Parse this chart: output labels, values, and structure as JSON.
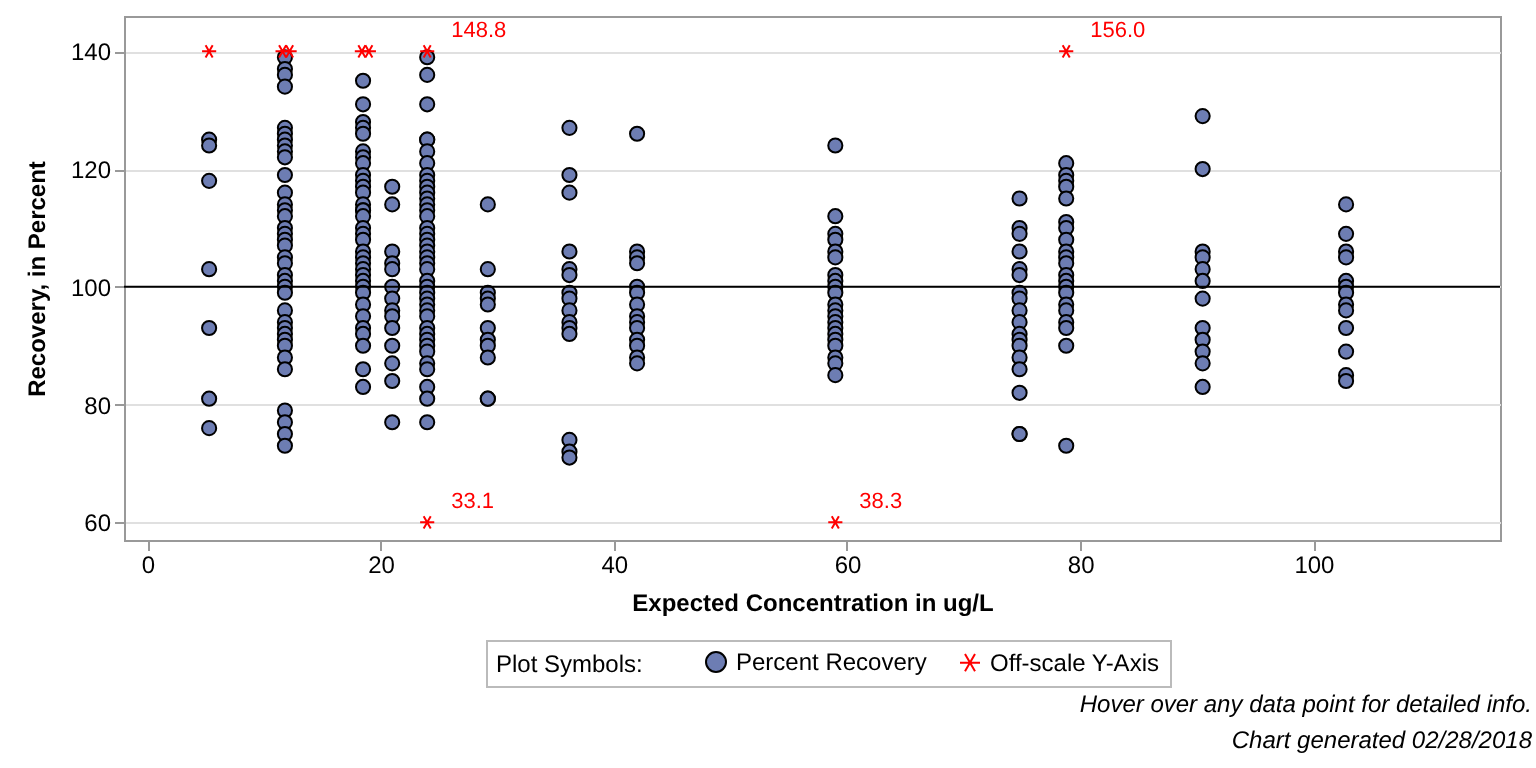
{
  "chart_data": {
    "type": "scatter",
    "xlabel": "Expected Concentration in ug/L",
    "ylabel": "Recovery, in Percent",
    "legend_title": "Plot Symbols:",
    "xlim": [
      -2,
      116
    ],
    "xticks": [
      0,
      20,
      40,
      60,
      80,
      100
    ],
    "ylim": [
      57,
      146
    ],
    "yticks": [
      60,
      80,
      100,
      120,
      140
    ],
    "grid": "y",
    "legend": "bottom",
    "ref_lines": [
      {
        "axis": "y",
        "value": 100,
        "color": "#000000",
        "line_style": "solid"
      }
    ],
    "series": [
      {
        "name": "Percent Recovery",
        "color": "#6d7db3",
        "marker": "circle",
        "x": [
          5.3,
          5.3,
          5.3,
          5.3,
          5.3,
          5.3,
          5.3,
          11.8,
          11.8,
          11.8,
          11.8,
          11.8,
          11.8,
          11.8,
          11.8,
          11.8,
          11.8,
          11.8,
          11.8,
          11.8,
          11.8,
          11.8,
          11.8,
          11.8,
          11.8,
          11.8,
          11.8,
          11.8,
          11.8,
          11.8,
          11.8,
          11.8,
          11.8,
          11.8,
          11.8,
          11.8,
          11.8,
          11.8,
          11.8,
          11.8,
          11.8,
          11.8,
          11.8,
          11.8,
          18.5,
          18.5,
          18.5,
          18.5,
          18.5,
          18.5,
          18.5,
          18.5,
          18.5,
          18.5,
          18.5,
          18.5,
          18.5,
          18.5,
          18.5,
          18.5,
          18.5,
          18.5,
          18.5,
          18.5,
          18.5,
          18.5,
          18.5,
          18.5,
          18.5,
          18.5,
          18.5,
          18.5,
          18.5,
          18.5,
          18.5,
          18.5,
          18.5,
          18.5,
          21,
          21,
          21,
          21,
          21,
          21,
          21,
          21,
          21,
          21,
          21,
          21,
          21,
          21,
          24,
          24,
          24,
          24,
          24,
          24,
          24,
          24,
          24,
          24,
          24,
          24,
          24,
          24,
          24,
          24,
          24,
          24,
          24,
          24,
          24,
          24,
          24,
          24,
          24,
          24,
          24,
          24,
          24,
          24,
          24,
          24,
          24,
          24,
          24,
          24,
          24,
          24,
          24,
          24,
          29.2,
          29.2,
          29.2,
          29.2,
          29.2,
          29.2,
          29.2,
          29.2,
          29.2,
          29.2,
          29.2,
          36.2,
          36.2,
          36.2,
          36.2,
          36.2,
          36.2,
          36.2,
          36.2,
          36.2,
          36.2,
          36.2,
          36.2,
          36.2,
          36.2,
          36.2,
          42,
          42,
          42,
          42,
          42,
          42,
          42,
          42,
          42,
          42,
          42,
          42,
          42,
          42,
          59,
          59,
          59,
          59,
          59,
          59,
          59,
          59,
          59,
          59,
          59,
          59,
          59,
          59,
          59,
          59,
          59,
          59,
          59,
          59,
          59,
          74.8,
          74.8,
          74.8,
          74.8,
          74.8,
          74.8,
          74.8,
          74.8,
          74.8,
          74.8,
          74.8,
          74.8,
          74.8,
          74.8,
          74.8,
          74.8,
          74.8,
          74.8,
          78.8,
          78.8,
          78.8,
          78.8,
          78.8,
          78.8,
          78.8,
          78.8,
          78.8,
          78.8,
          78.8,
          78.8,
          78.8,
          78.8,
          78.8,
          78.8,
          78.8,
          78.8,
          78.8,
          78.8,
          78.8,
          90.5,
          90.5,
          90.5,
          90.5,
          90.5,
          90.5,
          90.5,
          90.5,
          90.5,
          90.5,
          90.5,
          90.5,
          102.8,
          102.8,
          102.8,
          102.8,
          102.8,
          102.8,
          102.8,
          102.8,
          102.8,
          102.8,
          102.8,
          102.8,
          102.8
        ],
        "values": [
          125,
          124,
          118,
          103,
          93,
          81,
          76,
          139,
          137,
          136,
          134,
          127,
          126,
          125,
          124,
          123,
          122,
          119,
          116,
          114,
          113,
          112,
          110,
          109,
          108,
          107,
          105,
          104,
          102,
          101,
          100,
          99,
          96,
          94,
          93,
          92,
          91,
          90,
          88,
          86,
          79,
          77,
          75,
          73,
          135,
          131,
          128,
          127,
          126,
          123,
          122,
          121,
          119,
          118,
          117,
          116,
          114,
          113,
          113,
          112,
          110,
          109,
          108,
          106,
          105,
          104,
          103,
          102,
          101,
          100,
          99,
          97,
          95,
          93,
          92,
          90,
          86,
          83,
          117,
          114,
          106,
          104,
          103,
          100,
          98,
          96,
          95,
          93,
          90,
          87,
          84,
          77,
          139,
          136,
          131,
          125,
          125,
          123,
          121,
          119,
          118,
          117,
          116,
          115,
          114,
          113,
          112,
          110,
          109,
          108,
          107,
          106,
          105,
          104,
          103,
          101,
          100,
          99,
          98,
          97,
          96,
          95,
          93,
          92,
          91,
          90,
          89,
          87,
          86,
          83,
          81,
          77,
          114,
          103,
          99,
          98,
          97,
          93,
          91,
          90,
          88,
          81,
          81,
          127,
          119,
          116,
          106,
          103,
          102,
          99,
          98,
          96,
          94,
          93,
          92,
          74,
          72,
          71,
          126,
          106,
          105,
          104,
          100,
          99,
          97,
          95,
          94,
          93,
          91,
          90,
          88,
          87,
          124,
          112,
          109,
          108,
          106,
          105,
          102,
          101,
          100,
          99,
          97,
          96,
          95,
          94,
          93,
          92,
          91,
          90,
          88,
          87,
          85,
          115,
          110,
          109,
          106,
          103,
          102,
          99,
          98,
          96,
          94,
          92,
          91,
          90,
          88,
          86,
          82,
          75,
          75,
          121,
          119,
          118,
          117,
          115,
          111,
          110,
          108,
          106,
          105,
          104,
          102,
          101,
          100,
          99,
          97,
          96,
          94,
          93,
          90,
          73,
          129,
          120,
          106,
          105,
          103,
          101,
          98,
          93,
          91,
          89,
          87,
          83,
          114,
          109,
          106,
          105,
          101,
          100,
          99,
          97,
          96,
          93,
          89,
          85,
          84
        ]
      },
      {
        "name": "Off-scale Y-Axis",
        "color": "#ff0000",
        "marker": "cross",
        "x": [
          5.3,
          11.6,
          12.2,
          18.4,
          19.0,
          24,
          78.8,
          24,
          59
        ],
        "values": [
          140,
          140,
          140,
          140,
          140,
          140,
          140,
          60,
          60
        ]
      }
    ],
    "annotations": [
      {
        "text": "148.8",
        "x": 24,
        "y": 140
      },
      {
        "text": "156.0",
        "x": 78.8,
        "y": 140
      },
      {
        "text": "33.1",
        "x": 24,
        "y": 60
      },
      {
        "text": "38.3",
        "x": 59,
        "y": 60
      },
      "Hover over any data point for detailed info.",
      "Chart generated 02/28/2018"
    ]
  }
}
